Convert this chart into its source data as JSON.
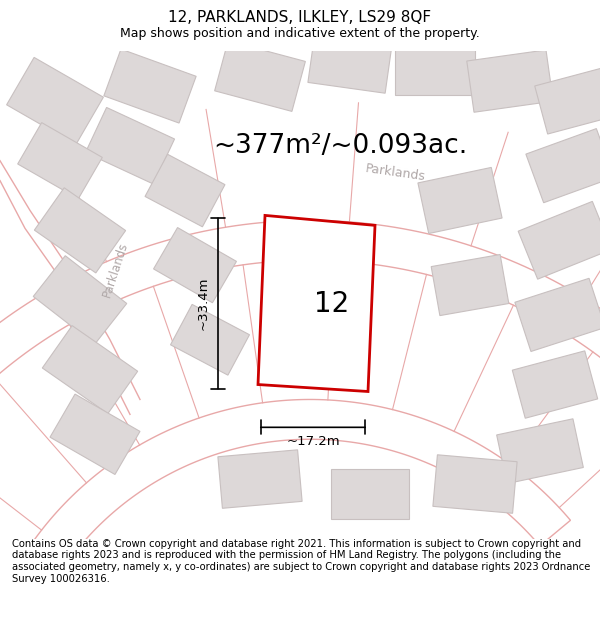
{
  "title": "12, PARKLANDS, ILKLEY, LS29 8QF",
  "subtitle": "Map shows position and indicative extent of the property.",
  "area_text": "~377m²/~0.093ac.",
  "plot_number": "12",
  "dim_width": "~17.2m",
  "dim_height": "~33.4m",
  "road_label_top": "Parklands",
  "road_label_left": "Parklands",
  "copyright_text": "Contains OS data © Crown copyright and database right 2021. This information is subject to Crown copyright and database rights 2023 and is reproduced with the permission of HM Land Registry. The polygons (including the associated geometry, namely x, y co-ordinates) are subject to Crown copyright and database rights 2023 Ordnance Survey 100026316.",
  "map_bg": "#f5eeee",
  "road_color": "#e8a8a8",
  "plot_color": "#cc0000",
  "building_fill": "#ddd8d8",
  "building_edge": "#c8c0c0",
  "title_fontsize": 11,
  "subtitle_fontsize": 9,
  "area_fontsize": 19,
  "plot_label_fontsize": 20,
  "road_label_fontsize": 9,
  "dim_fontsize": 9.5,
  "copyright_fontsize": 7.2
}
